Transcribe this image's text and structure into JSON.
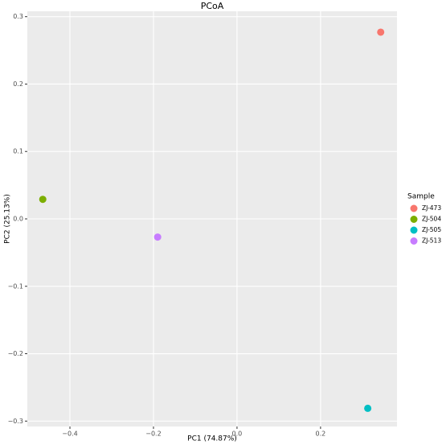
{
  "chart_data": {
    "type": "scatter",
    "title": "PCoA",
    "x_label": "PC1 (74.87%)",
    "y_label": "PC2 (25.13%)",
    "legend_title": "Sample",
    "legend": "right",
    "grid": true,
    "xlim": [
      -0.502,
      0.383
    ],
    "xticks": [
      {
        "value": -0.4,
        "label": "−0.4"
      },
      {
        "value": -0.2,
        "label": "−0.2"
      },
      {
        "value": 0,
        "label": "0.0"
      },
      0.2
    ],
    "ylim": [
      -0.308,
      0.308
    ],
    "yticks": [
      0.3,
      0.2,
      0.1,
      {
        "value": 0,
        "label": "0.0"
      },
      {
        "value": -0.1,
        "label": "−0.1"
      },
      {
        "value": -0.2,
        "label": "−0.2"
      },
      {
        "value": -0.3,
        "label": "−0.3"
      }
    ],
    "series": [
      {
        "name": "ZJ-473",
        "color": "#F8766D",
        "x": [
          0.344
        ],
        "values": [
          0.277
        ]
      },
      {
        "name": "ZJ-504",
        "color": "#7CAE00",
        "x": [
          -0.465
        ],
        "values": [
          0.029
        ]
      },
      {
        "name": "ZJ-505",
        "color": "#00BFC4",
        "x": [
          0.313
        ],
        "values": [
          -0.281
        ]
      },
      {
        "name": "ZJ-513",
        "color": "#C77CFF",
        "x": [
          -0.19
        ],
        "values": [
          -0.027
        ]
      }
    ]
  }
}
